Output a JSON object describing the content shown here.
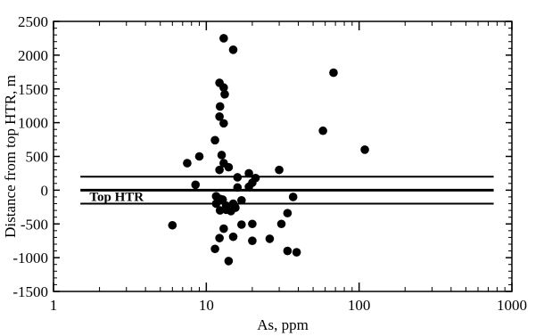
{
  "chart_data": {
    "type": "scatter",
    "title": "",
    "xlabel": "As, ppm",
    "ylabel": "Distance from top HTR, m",
    "x_scale": "log",
    "xlim": [
      1,
      1000
    ],
    "ylim": [
      -1500,
      2500
    ],
    "x_ticks": [
      1,
      10,
      100,
      1000
    ],
    "x_tick_labels": [
      "1",
      "10",
      "100",
      "1000"
    ],
    "y_ticks": [
      -1500,
      -1000,
      -500,
      0,
      500,
      1000,
      1500,
      2000,
      2500
    ],
    "y_tick_labels": [
      "-1500",
      "-1000",
      "-500",
      "0",
      "500",
      "1000",
      "1500",
      "2000",
      "2500"
    ],
    "grid": false,
    "reference_lines": [
      {
        "y": 200
      },
      {
        "y": 0,
        "label": "Top HTR"
      },
      {
        "y": -200
      }
    ],
    "points": [
      {
        "x": 13,
        "y": 2250
      },
      {
        "x": 15,
        "y": 2080
      },
      {
        "x": 68,
        "y": 1740
      },
      {
        "x": 12.2,
        "y": 1590
      },
      {
        "x": 13,
        "y": 1520
      },
      {
        "x": 13.2,
        "y": 1420
      },
      {
        "x": 12.3,
        "y": 1240
      },
      {
        "x": 12.2,
        "y": 1090
      },
      {
        "x": 13,
        "y": 990
      },
      {
        "x": 58,
        "y": 880
      },
      {
        "x": 11.4,
        "y": 740
      },
      {
        "x": 109,
        "y": 600
      },
      {
        "x": 9,
        "y": 500
      },
      {
        "x": 12.6,
        "y": 520
      },
      {
        "x": 7.5,
        "y": 400
      },
      {
        "x": 13,
        "y": 400
      },
      {
        "x": 14,
        "y": 340
      },
      {
        "x": 12.2,
        "y": 300
      },
      {
        "x": 30,
        "y": 300
      },
      {
        "x": 19,
        "y": 250
      },
      {
        "x": 16,
        "y": 190
      },
      {
        "x": 21,
        "y": 180
      },
      {
        "x": 8.5,
        "y": 80
      },
      {
        "x": 20,
        "y": 110
      },
      {
        "x": 16,
        "y": 40
      },
      {
        "x": 19,
        "y": 50
      },
      {
        "x": 11.6,
        "y": -90
      },
      {
        "x": 37,
        "y": -100
      },
      {
        "x": 12.3,
        "y": -130
      },
      {
        "x": 12.8,
        "y": -140
      },
      {
        "x": 17,
        "y": -150
      },
      {
        "x": 11.6,
        "y": -200
      },
      {
        "x": 13.5,
        "y": -230
      },
      {
        "x": 15,
        "y": -200
      },
      {
        "x": 12.3,
        "y": -300
      },
      {
        "x": 13.5,
        "y": -290
      },
      {
        "x": 14.5,
        "y": -310
      },
      {
        "x": 15.5,
        "y": -260
      },
      {
        "x": 34,
        "y": -340
      },
      {
        "x": 6,
        "y": -520
      },
      {
        "x": 13,
        "y": -570
      },
      {
        "x": 17,
        "y": -510
      },
      {
        "x": 20,
        "y": -500
      },
      {
        "x": 31,
        "y": -500
      },
      {
        "x": 12.2,
        "y": -710
      },
      {
        "x": 15,
        "y": -690
      },
      {
        "x": 20,
        "y": -750
      },
      {
        "x": 26,
        "y": -720
      },
      {
        "x": 11.4,
        "y": -870
      },
      {
        "x": 34,
        "y": -900
      },
      {
        "x": 39,
        "y": -920
      },
      {
        "x": 14,
        "y": -1050
      }
    ]
  }
}
